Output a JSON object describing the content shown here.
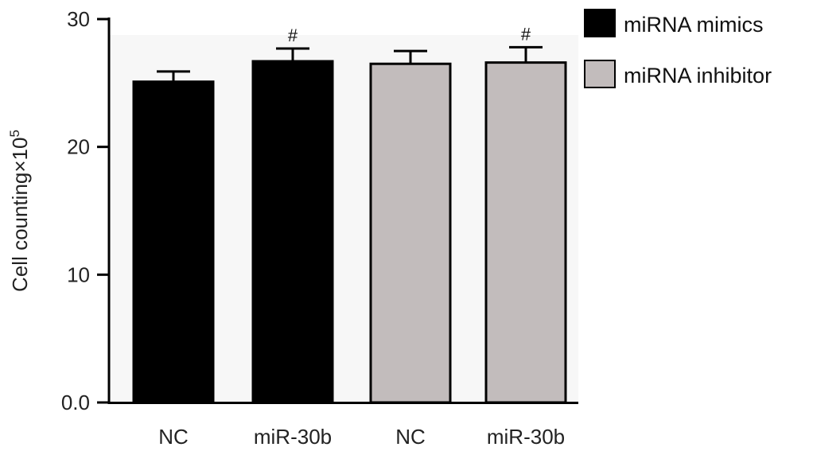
{
  "chart_data": {
    "type": "bar",
    "categories": [
      "NC",
      "miR-30b",
      "NC",
      "miR-30b"
    ],
    "values": [
      25.1,
      26.7,
      26.5,
      26.6
    ],
    "errors": [
      0.8,
      1.0,
      1.0,
      1.2
    ],
    "significance": [
      "",
      "#",
      "",
      "#"
    ],
    "bar_series": [
      0,
      0,
      1,
      1
    ],
    "series": [
      {
        "name": "miRNA mimics",
        "color": "#000000"
      },
      {
        "name": "miRNA inhibitor",
        "color": "#c2bcbc"
      }
    ],
    "ylabel_main": "Cell counting×10",
    "ylabel_sup": "5",
    "ylim": [
      0,
      30
    ],
    "yticks": [
      "0.0",
      "10",
      "20",
      "30"
    ],
    "ytick_values": [
      0,
      10,
      20,
      30
    ],
    "legend_position": "top-right",
    "grid": false
  }
}
